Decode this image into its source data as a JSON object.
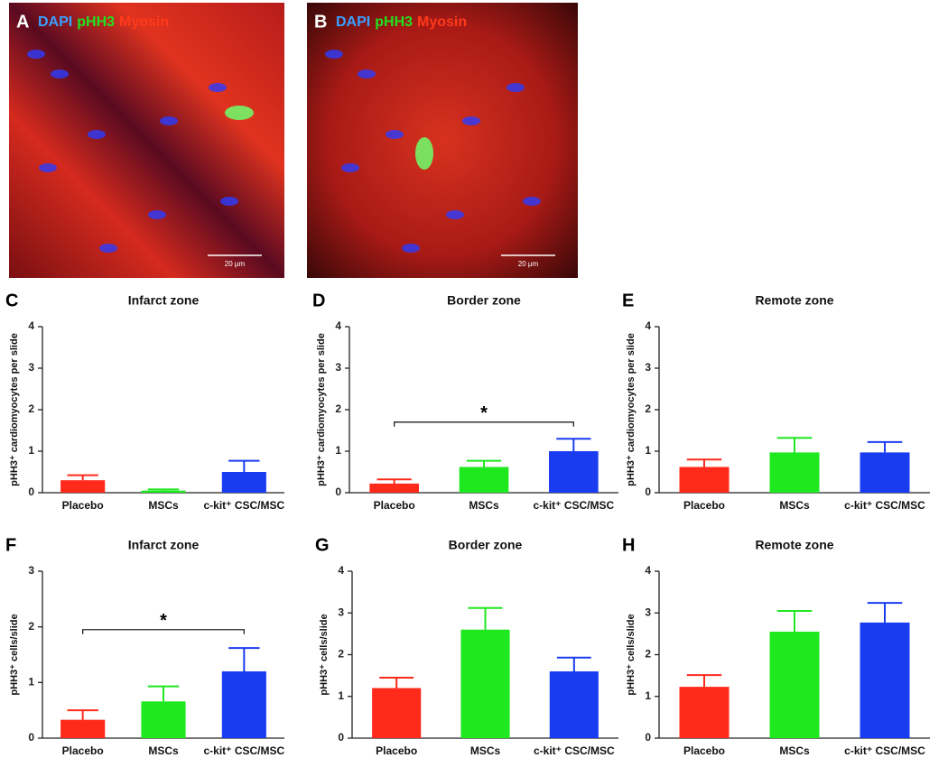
{
  "images": [
    {
      "panel": "A",
      "stains": [
        "DAPI",
        "pHH3",
        "Myosin"
      ],
      "scale": "20 μm"
    },
    {
      "panel": "B",
      "stains": [
        "DAPI",
        "pHH3",
        "Myosin"
      ],
      "scale": "20 μm"
    }
  ],
  "chart_data": [
    {
      "type": "bar",
      "panel": "C",
      "title": "Infarct zone",
      "ylabel": "pHH3⁺ cardiomyocytes per slide",
      "categories": [
        "Placebo",
        "MSCs",
        "c-kit⁺ CSC/MSC"
      ],
      "colors": [
        "#ff2a1a",
        "#1ee81e",
        "#1a3cf0"
      ],
      "values": [
        0.3,
        0.05,
        0.5
      ],
      "errors": [
        0.12,
        0.03,
        0.27
      ],
      "ylim": [
        0,
        4
      ],
      "yticks": [
        0,
        1,
        2,
        3,
        4
      ]
    },
    {
      "type": "bar",
      "panel": "D",
      "title": "Border zone",
      "ylabel": "pHH3⁺ cardiomyocytes per slide",
      "categories": [
        "Placebo",
        "MSCs",
        "c-kit⁺ CSC/MSC"
      ],
      "colors": [
        "#ff2a1a",
        "#1ee81e",
        "#1a3cf0"
      ],
      "values": [
        0.22,
        0.62,
        1.0
      ],
      "errors": [
        0.1,
        0.15,
        0.3
      ],
      "ylim": [
        0,
        4
      ],
      "yticks": [
        0,
        1,
        2,
        3,
        4
      ],
      "significance": {
        "between": [
          "Placebo",
          "c-kit⁺ CSC/MSC"
        ],
        "y": 1.7,
        "label": "*"
      }
    },
    {
      "type": "bar",
      "panel": "E",
      "title": "Remote zone",
      "ylabel": "pHH3⁺ cardiomyocytes per slide",
      "categories": [
        "Placebo",
        "MSCs",
        "c-kit⁺ CSC/MSC"
      ],
      "colors": [
        "#ff2a1a",
        "#1ee81e",
        "#1a3cf0"
      ],
      "values": [
        0.62,
        0.97,
        0.97
      ],
      "errors": [
        0.18,
        0.35,
        0.25
      ],
      "ylim": [
        0,
        4
      ],
      "yticks": [
        0,
        1,
        2,
        3,
        4
      ]
    },
    {
      "type": "bar",
      "panel": "F",
      "title": "Infarct zone",
      "ylabel": "pHH3⁺ cells/slide",
      "categories": [
        "Placebo",
        "MSCs",
        "c-kit⁺ CSC/MSC"
      ],
      "colors": [
        "#ff2a1a",
        "#1ee81e",
        "#1a3cf0"
      ],
      "values": [
        0.33,
        0.66,
        1.2
      ],
      "errors": [
        0.17,
        0.27,
        0.42
      ],
      "ylim": [
        0,
        3
      ],
      "yticks": [
        0,
        1,
        2,
        3
      ],
      "significance": {
        "between": [
          "Placebo",
          "c-kit⁺ CSC/MSC"
        ],
        "y": 1.95,
        "label": "*"
      }
    },
    {
      "type": "bar",
      "panel": "G",
      "title": "Border zone",
      "ylabel": "pHH3⁺ cells/slide",
      "categories": [
        "Placebo",
        "MSCs",
        "c-kit⁺ CSC/MSC"
      ],
      "colors": [
        "#ff2a1a",
        "#1ee81e",
        "#1a3cf0"
      ],
      "values": [
        1.2,
        2.6,
        1.6
      ],
      "errors": [
        0.25,
        0.52,
        0.33
      ],
      "ylim": [
        0,
        4
      ],
      "yticks": [
        0,
        1,
        2,
        3,
        4
      ]
    },
    {
      "type": "bar",
      "panel": "H",
      "title": "Remote zone",
      "ylabel": "pHH3⁺ cells/slide",
      "categories": [
        "Placebo",
        "MSCs",
        "c-kit⁺ CSC/MSC"
      ],
      "colors": [
        "#ff2a1a",
        "#1ee81e",
        "#1a3cf0"
      ],
      "values": [
        1.23,
        2.55,
        2.77
      ],
      "errors": [
        0.28,
        0.5,
        0.47
      ],
      "ylim": [
        0,
        4
      ],
      "yticks": [
        0,
        1,
        2,
        3,
        4
      ]
    }
  ]
}
